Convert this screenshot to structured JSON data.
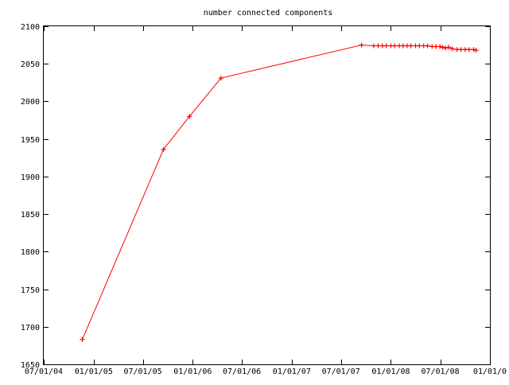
{
  "chart_data": {
    "type": "line",
    "title": "number connected components",
    "xlabel": "",
    "ylabel": "",
    "x_axis_type": "date",
    "xlim": [
      "2004-07-01",
      "2008-12-31"
    ],
    "ylim": [
      1650,
      2100
    ],
    "x_ticks": [
      "07/01/04",
      "01/01/05",
      "07/01/05",
      "01/01/06",
      "07/01/06",
      "01/01/07",
      "07/01/07",
      "01/01/08",
      "07/01/08",
      "01/01/0"
    ],
    "x_tick_dates": [
      "2004-07-01",
      "2005-01-01",
      "2005-07-01",
      "2006-01-01",
      "2006-07-01",
      "2007-01-01",
      "2007-07-01",
      "2008-01-01",
      "2008-07-01",
      "2009-01-01"
    ],
    "y_ticks": [
      1650,
      1700,
      1750,
      1800,
      1850,
      1900,
      1950,
      2000,
      2050,
      2100
    ],
    "grid": false,
    "legend": "none",
    "line_color": "#ff0000",
    "marker": "plus",
    "series": [
      {
        "x": [
          "2004-11-20",
          "2005-09-15",
          "2005-12-20",
          "2006-04-15",
          "2007-09-15",
          "2007-10-30",
          "2007-11-15",
          "2007-12-01",
          "2007-12-15",
          "2008-01-01",
          "2008-01-15",
          "2008-02-01",
          "2008-02-15",
          "2008-03-01",
          "2008-03-15",
          "2008-04-01",
          "2008-04-15",
          "2008-05-01",
          "2008-05-15",
          "2008-06-01",
          "2008-06-15",
          "2008-06-30",
          "2008-07-10",
          "2008-07-20",
          "2008-08-01",
          "2008-08-15",
          "2008-09-01",
          "2008-09-15",
          "2008-10-01",
          "2008-10-15",
          "2008-11-01",
          "2008-11-10"
        ],
        "y": [
          1683,
          1936,
          1980,
          2031,
          2075,
          2074,
          2074,
          2074,
          2074,
          2074,
          2074,
          2074,
          2074,
          2074,
          2074,
          2074,
          2074,
          2074,
          2074,
          2073,
          2073,
          2073,
          2072,
          2071,
          2072,
          2070,
          2069,
          2069,
          2069,
          2069,
          2069,
          2068
        ]
      }
    ]
  }
}
